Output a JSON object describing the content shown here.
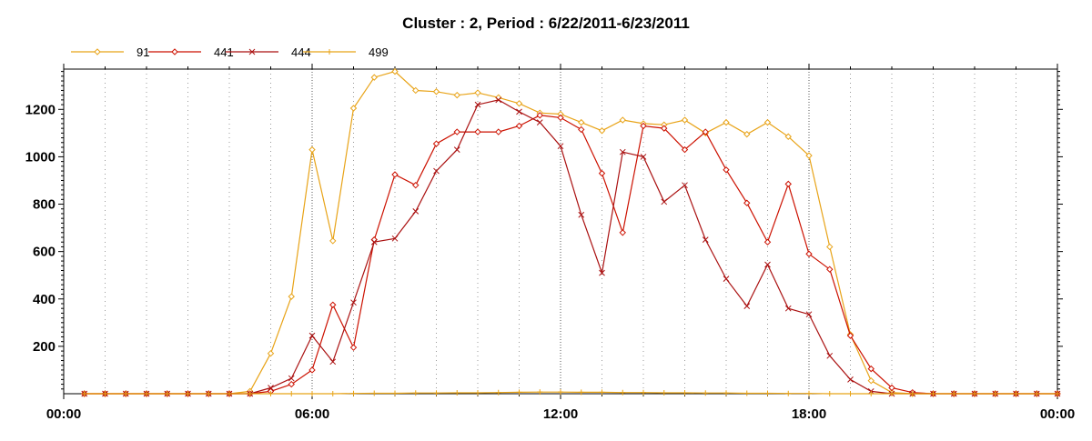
{
  "chart_data": {
    "type": "line",
    "title": "Cluster : 2, Period : 6/22/2011-6/23/2011",
    "xlabel": "",
    "ylabel": "",
    "ylim": [
      0,
      1370
    ],
    "xlim": [
      0,
      1440
    ],
    "x_unit": "minutes since 00:00",
    "x_ticks": [
      {
        "value": 0,
        "label": "00:00"
      },
      {
        "value": 360,
        "label": "06:00"
      },
      {
        "value": 720,
        "label": "12:00"
      },
      {
        "value": 1080,
        "label": "18:00"
      },
      {
        "value": 1440,
        "label": "00:00"
      }
    ],
    "y_ticks": [
      200,
      400,
      600,
      800,
      1000,
      1200
    ],
    "grid": "vertical dotted lines every hour, darker at 6-hour marks",
    "legend_position": "top-left",
    "x": [
      30,
      60,
      90,
      120,
      150,
      180,
      210,
      240,
      270,
      300,
      330,
      360,
      390,
      420,
      450,
      480,
      510,
      540,
      570,
      600,
      630,
      660,
      690,
      720,
      750,
      780,
      810,
      840,
      870,
      900,
      930,
      960,
      990,
      1020,
      1050,
      1080,
      1110,
      1140,
      1170,
      1200,
      1230,
      1260,
      1290,
      1320,
      1350,
      1380,
      1410,
      1440
    ],
    "series": [
      {
        "name": "91",
        "color": "#e8a317",
        "marker": "diamond",
        "values": [
          0,
          0,
          0,
          0,
          0,
          0,
          0,
          0,
          10,
          170,
          410,
          1030,
          645,
          1205,
          1335,
          1360,
          1280,
          1275,
          1260,
          1270,
          1250,
          1225,
          1185,
          1180,
          1145,
          1110,
          1155,
          1140,
          1135,
          1155,
          1100,
          1145,
          1095,
          1145,
          1085,
          1005,
          620,
          250,
          55,
          5,
          0,
          0,
          0,
          0,
          0,
          0,
          0,
          0
        ]
      },
      {
        "name": "441",
        "color": "#cc1100",
        "marker": "diamond",
        "values": [
          0,
          0,
          0,
          0,
          0,
          0,
          0,
          0,
          0,
          10,
          40,
          100,
          375,
          195,
          650,
          925,
          880,
          1055,
          1105,
          1105,
          1105,
          1130,
          1175,
          1165,
          1115,
          930,
          680,
          1130,
          1120,
          1030,
          1105,
          945,
          805,
          640,
          885,
          590,
          525,
          245,
          105,
          25,
          5,
          0,
          0,
          0,
          0,
          0,
          0,
          0
        ]
      },
      {
        "name": "444",
        "color": "#aa1111",
        "marker": "cross",
        "values": [
          0,
          0,
          0,
          0,
          0,
          0,
          0,
          0,
          0,
          25,
          65,
          245,
          135,
          385,
          640,
          655,
          770,
          940,
          1030,
          1220,
          1240,
          1190,
          1145,
          1045,
          755,
          510,
          1020,
          1000,
          810,
          880,
          650,
          485,
          370,
          545,
          360,
          335,
          160,
          60,
          10,
          0,
          0,
          0,
          0,
          0,
          0,
          0,
          0,
          0
        ]
      },
      {
        "name": "499",
        "color": "#e8a317",
        "marker": "plus",
        "values": [
          0,
          0,
          0,
          0,
          0,
          0,
          0,
          0,
          0,
          0,
          0,
          0,
          0,
          1,
          2,
          2,
          3,
          3,
          4,
          4,
          5,
          6,
          7,
          7,
          6,
          6,
          5,
          5,
          4,
          4,
          3,
          3,
          2,
          2,
          1,
          1,
          0,
          0,
          0,
          0,
          0,
          0,
          0,
          0,
          0,
          0,
          0,
          0
        ]
      }
    ]
  }
}
